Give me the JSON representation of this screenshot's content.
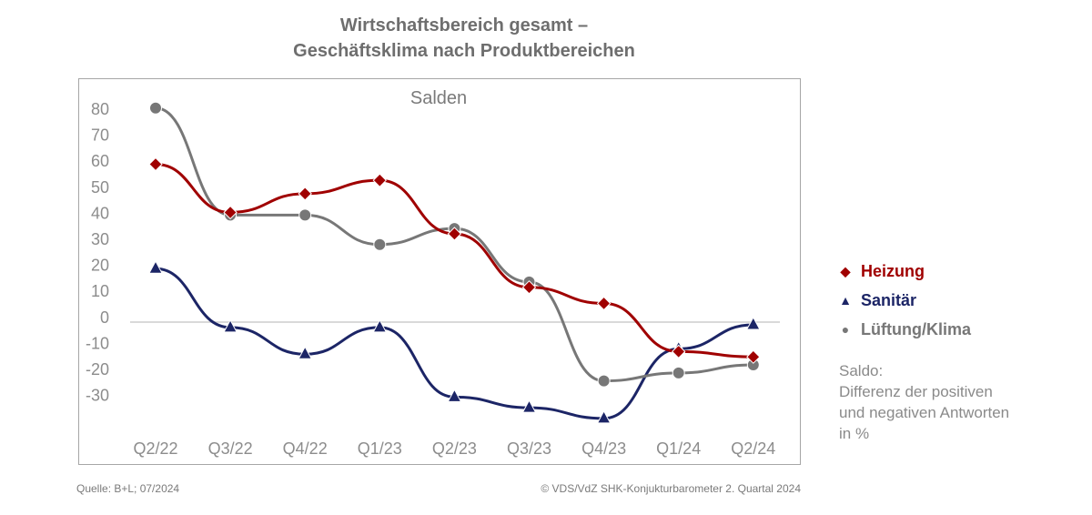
{
  "title_line1": "Wirtschaftsbereich gesamt –",
  "title_line2": "Geschäftsklima nach Produktbereichen",
  "legend": [
    {
      "name": "Heizung",
      "marker": "◆",
      "color": "#a00000"
    },
    {
      "name": "Sanitär",
      "marker": "▲",
      "color": "#1c2566"
    },
    {
      "name": "Lüftung/Klima",
      "marker": "●",
      "color": "#777777"
    }
  ],
  "note": "Saldo:\nDifferenz der positiven\nund negativen Antworten\nin %",
  "footer": {
    "source": "Quelle: B+L; 07/2024",
    "copyright": "© VDS/VdZ SHK-Konjukturbarometer 2. Quartal 2024"
  },
  "chart_data": {
    "type": "line",
    "title": "Wirtschaftsbereich gesamt – Geschäftsklima nach Produktbereichen",
    "subtitle": "Salden",
    "xlabel": "",
    "ylabel": "",
    "categories": [
      "Q2/22",
      "Q3/22",
      "Q4/22",
      "Q1/23",
      "Q2/23",
      "Q3/23",
      "Q4/23",
      "Q1/24",
      "Q2/24"
    ],
    "yticks": [
      80,
      70,
      60,
      50,
      40,
      30,
      20,
      10,
      0,
      -10,
      -20,
      -30
    ],
    "ylim": [
      -40,
      80
    ],
    "grid": false,
    "zero_line": true,
    "legend_position": "right",
    "series": [
      {
        "name": "Heizung",
        "color": "#a00000",
        "marker": "diamond",
        "values": [
          59,
          41,
          48,
          53,
          33,
          13,
          7,
          -11,
          -13
        ]
      },
      {
        "name": "Sanitär",
        "color": "#1c2566",
        "marker": "triangle",
        "values": [
          20,
          -2,
          -12,
          -2,
          -28,
          -32,
          -36,
          -10,
          -1
        ]
      },
      {
        "name": "Lüftung/Klima",
        "color": "#777777",
        "marker": "circle",
        "values": [
          80,
          40,
          40,
          29,
          35,
          15,
          -22,
          -19,
          -16
        ]
      }
    ]
  }
}
